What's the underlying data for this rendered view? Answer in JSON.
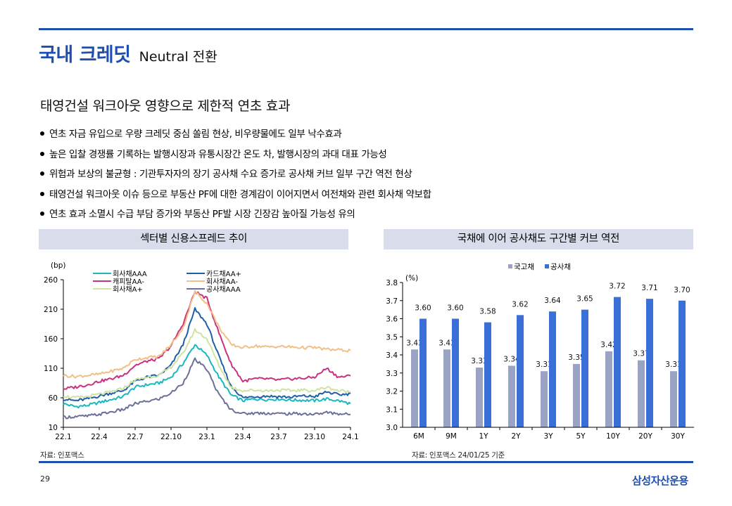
{
  "header": {
    "title": "국내 크레딧",
    "subtitle": "Neutral 전환",
    "section_title": "태영건설 워크아웃 영향으로 제한적 연초 효과"
  },
  "bullets": [
    "연초 자금 유입으로 우량 크레딧 중심 쏠림 현상, 비우량물에도 일부 낙수효과",
    "높은 입찰 경쟁률 기록하는 발행시장과 유통시장간 온도 차, 발행시장의 과대 대표 가능성",
    "위험과 보상의 불균형 : 기관투자자의 장기 공사채 수요 증가로 공사채 커브 일부 구간 역전 현상",
    "태영건설 워크아웃 이슈 등으로 부동산 PF에 대한 경계감이 이어지면서 여전채와 관련 회사채 약보합",
    "연초 효과 소멸시 수급 부담 증가와 부동산 PF발 시장 긴장감 높아질 가능성 유의"
  ],
  "left_panel": {
    "title": "섹터별 신용스프레드 추이",
    "source": "자료: 인포맥스"
  },
  "right_panel": {
    "title": "국채에 이어 공사채도 구간별 커브 역전",
    "source": "자료: 인포맥스 24/01/25 기준"
  },
  "footer": {
    "page": "29",
    "logo": "삼성자산운용"
  },
  "chart_data": [
    {
      "type": "line",
      "title": "섹터별 신용스프레드 추이",
      "ylabel": "(bp)",
      "ylim": [
        10,
        260
      ],
      "yticks": [
        10,
        60,
        110,
        160,
        210,
        260
      ],
      "xticks": [
        "22.1",
        "22.4",
        "22.7",
        "22.10",
        "23.1",
        "23.4",
        "23.7",
        "23.10",
        "24.1"
      ],
      "x": [
        "22.1",
        "22.2",
        "22.3",
        "22.4",
        "22.5",
        "22.6",
        "22.7",
        "22.8",
        "22.9",
        "22.10",
        "22.11",
        "22.12",
        "23.1",
        "23.2",
        "23.3",
        "23.4",
        "23.5",
        "23.6",
        "23.7",
        "23.8",
        "23.9",
        "23.10",
        "23.11",
        "23.12",
        "24.1"
      ],
      "legend": [
        "회사채AAA",
        "카드채AA+",
        "캐피탈AA-",
        "회사채AA-",
        "회사채A+",
        "공사채AAA"
      ],
      "series": [
        {
          "name": "회사채AAA",
          "color": "#19b8bf",
          "values": [
            50,
            45,
            47,
            52,
            57,
            62,
            78,
            82,
            85,
            95,
            118,
            150,
            132,
            95,
            65,
            55,
            58,
            57,
            58,
            56,
            56,
            55,
            58,
            55,
            50
          ]
        },
        {
          "name": "카드채AA+",
          "color": "#1f5fa8",
          "values": [
            58,
            55,
            58,
            63,
            68,
            72,
            88,
            95,
            98,
            115,
            150,
            210,
            185,
            130,
            80,
            60,
            62,
            63,
            62,
            61,
            63,
            62,
            70,
            65,
            67
          ]
        },
        {
          "name": "캐피탈AA-",
          "color": "#c8327e",
          "values": [
            75,
            78,
            82,
            88,
            92,
            98,
            115,
            122,
            126,
            148,
            185,
            240,
            228,
            170,
            118,
            88,
            92,
            92,
            90,
            92,
            93,
            95,
            110,
            95,
            97
          ]
        },
        {
          "name": "회사채AA-",
          "color": "#f0c088",
          "values": [
            98,
            96,
            98,
            100,
            105,
            110,
            125,
            128,
            130,
            150,
            178,
            240,
            220,
            180,
            150,
            145,
            148,
            146,
            147,
            146,
            145,
            145,
            142,
            141,
            140
          ]
        },
        {
          "name": "회사채A+",
          "color": "#cfe3a3",
          "values": [
            63,
            60,
            62,
            66,
            70,
            76,
            90,
            95,
            98,
            112,
            135,
            175,
            160,
            115,
            78,
            72,
            73,
            72,
            73,
            72,
            73,
            72,
            78,
            72,
            70
          ]
        },
        {
          "name": "공사채AAA",
          "color": "#6c6f9a",
          "values": [
            27,
            28,
            29,
            32,
            36,
            40,
            50,
            54,
            58,
            68,
            85,
            125,
            108,
            65,
            40,
            33,
            34,
            34,
            33,
            33,
            33,
            32,
            35,
            33,
            32
          ]
        }
      ]
    },
    {
      "type": "bar",
      "title": "국채에 이어 공사채도 구간별 커브 역전",
      "ylabel": "(%)",
      "ylim": [
        3.0,
        3.8
      ],
      "yticks": [
        3.0,
        3.1,
        3.2,
        3.3,
        3.4,
        3.5,
        3.6,
        3.7,
        3.8
      ],
      "categories": [
        "6M",
        "9M",
        "1Y",
        "2Y",
        "3Y",
        "5Y",
        "10Y",
        "20Y",
        "30Y"
      ],
      "series": [
        {
          "name": "국고채",
          "color": "#9aa3c3",
          "values": [
            3.43,
            3.43,
            3.33,
            3.34,
            3.31,
            3.35,
            3.42,
            3.37,
            3.31
          ]
        },
        {
          "name": "공사채",
          "color": "#3a6fd8",
          "values": [
            3.6,
            3.6,
            3.58,
            3.62,
            3.64,
            3.65,
            3.72,
            3.71,
            3.7
          ]
        }
      ]
    }
  ]
}
